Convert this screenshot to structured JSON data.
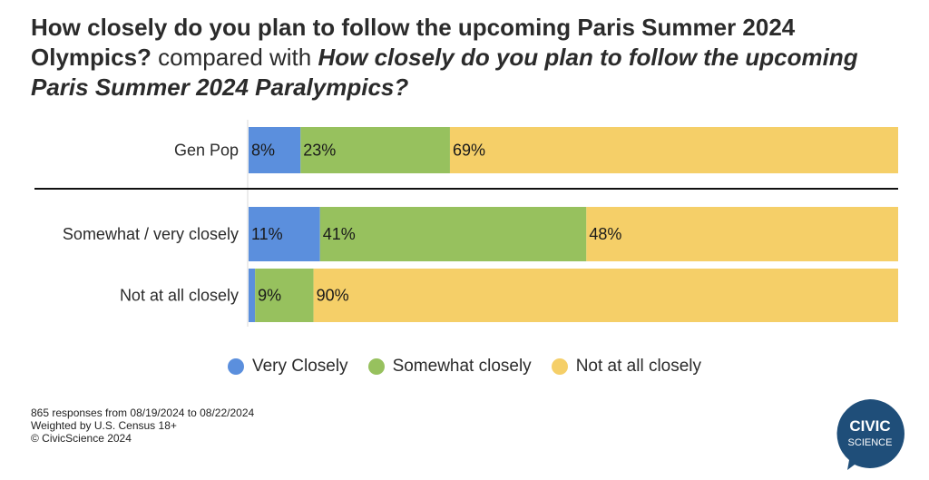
{
  "title": {
    "part1": "How closely do you plan to follow the upcoming Paris Summer 2024 Olympics?",
    "part2": " compared with ",
    "part3": "How closely do you plan to follow the upcoming Paris Summer 2024 Paralympics?"
  },
  "chart_data": {
    "type": "bar",
    "orientation": "horizontal",
    "stacked": "100%",
    "categories": [
      "Gen Pop",
      "Somewhat / very closely",
      "Not at all closely"
    ],
    "series": [
      {
        "name": "Very Closely",
        "color": "#5b8fdd",
        "values": [
          8,
          11,
          1
        ],
        "labels": [
          "8%",
          "11%",
          ""
        ]
      },
      {
        "name": "Somewhat closely",
        "color": "#97c15e",
        "values": [
          23,
          41,
          9
        ],
        "labels": [
          "23%",
          "41%",
          "9%"
        ]
      },
      {
        "name": "Not at all closely",
        "color": "#f5cf68",
        "values": [
          69,
          48,
          90
        ],
        "labels": [
          "69%",
          "48%",
          "90%"
        ]
      }
    ],
    "xlim": [
      0,
      100
    ],
    "legend_position": "bottom",
    "separator_after_category": "Gen Pop"
  },
  "footnote": [
    "865 responses from 08/19/2024 to 08/22/2024",
    "Weighted by U.S. Census 18+",
    "© CivicScience 2024"
  ],
  "logo": {
    "line1": "CIVIC",
    "line2": "SCIENCE",
    "color": "#1f4e79"
  }
}
